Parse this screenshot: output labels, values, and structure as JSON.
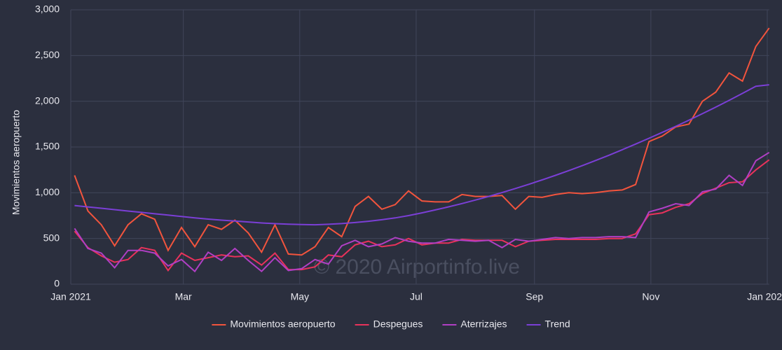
{
  "chart_data": {
    "type": "line",
    "y_label": "Movimientos aeropuerto",
    "watermark": "© 2020 Airportinfo.live",
    "x": [
      2,
      9,
      16,
      23,
      30,
      37,
      44,
      51,
      58,
      65,
      72,
      79,
      86,
      93,
      100,
      107,
      114,
      121,
      128,
      135,
      142,
      149,
      156,
      163,
      170,
      177,
      184,
      191,
      198,
      205,
      212,
      219,
      226,
      233,
      240,
      247,
      254,
      261,
      268,
      275,
      282,
      289,
      296,
      303,
      310,
      317,
      324,
      331,
      338,
      345,
      352,
      359,
      366
    ],
    "xlim": [
      0,
      366
    ],
    "xticks": [
      {
        "value": 0,
        "label": "Jan 2021"
      },
      {
        "value": 59,
        "label": "Mar"
      },
      {
        "value": 120,
        "label": "May"
      },
      {
        "value": 181,
        "label": "Jul"
      },
      {
        "value": 243,
        "label": "Sep"
      },
      {
        "value": 304,
        "label": "Nov"
      },
      {
        "value": 365,
        "label": "Jan 2022"
      }
    ],
    "ylim": [
      0,
      3000
    ],
    "yticks": [
      0,
      500,
      {
        "value": 1000,
        "label": "1,000"
      },
      {
        "value": 1500,
        "label": "1,500"
      },
      {
        "value": 2000,
        "label": "2,000"
      },
      {
        "value": 2500,
        "label": "2,500"
      },
      {
        "value": 3000,
        "label": "3,000"
      }
    ],
    "grid": true,
    "legend": "bottom",
    "series": [
      {
        "name": "Movimientos aeropuerto",
        "color": "#f2543d",
        "values": [
          1190,
          800,
          650,
          420,
          650,
          770,
          710,
          370,
          620,
          410,
          650,
          600,
          700,
          560,
          350,
          650,
          330,
          320,
          410,
          620,
          520,
          850,
          960,
          820,
          870,
          1020,
          910,
          900,
          900,
          980,
          960,
          960,
          970,
          820,
          960,
          950,
          980,
          1000,
          990,
          1000,
          1020,
          1030,
          1090,
          1560,
          1620,
          1720,
          1750,
          2000,
          2100,
          2310,
          2220,
          2600,
          2800
        ]
      },
      {
        "name": "Despegues",
        "color": "#e8325b",
        "values": [
          580,
          400,
          310,
          240,
          270,
          400,
          370,
          150,
          340,
          260,
          290,
          320,
          300,
          310,
          210,
          340,
          160,
          160,
          190,
          320,
          300,
          430,
          470,
          410,
          430,
          500,
          430,
          450,
          450,
          490,
          480,
          480,
          480,
          410,
          470,
          480,
          490,
          490,
          490,
          490,
          500,
          500,
          550,
          760,
          780,
          840,
          880,
          990,
          1050,
          1110,
          1120,
          1250,
          1360
        ]
      },
      {
        "name": "Aterrizajes",
        "color": "#b03fc4",
        "values": [
          610,
          390,
          340,
          180,
          370,
          370,
          340,
          200,
          270,
          140,
          350,
          260,
          390,
          260,
          140,
          290,
          150,
          170,
          270,
          220,
          420,
          480,
          410,
          440,
          510,
          470,
          450,
          450,
          490,
          480,
          470,
          480,
          400,
          490,
          470,
          490,
          510,
          500,
          510,
          510,
          520,
          520,
          510,
          790,
          830,
          880,
          860,
          1010,
          1040,
          1190,
          1080,
          1350,
          1440
        ]
      },
      {
        "name": "Trend",
        "color": "#7b3fd6",
        "values": [
          860,
          845,
          830,
          815,
          800,
          785,
          770,
          755,
          740,
          725,
          712,
          700,
          690,
          680,
          670,
          662,
          656,
          652,
          650,
          655,
          663,
          674,
          688,
          705,
          725,
          750,
          780,
          812,
          846,
          882,
          920,
          960,
          1002,
          1046,
          1092,
          1140,
          1190,
          1242,
          1296,
          1352,
          1410,
          1470,
          1532,
          1596,
          1660,
          1726,
          1794,
          1864,
          1936,
          2010,
          2086,
          2164,
          2180
        ]
      }
    ]
  }
}
